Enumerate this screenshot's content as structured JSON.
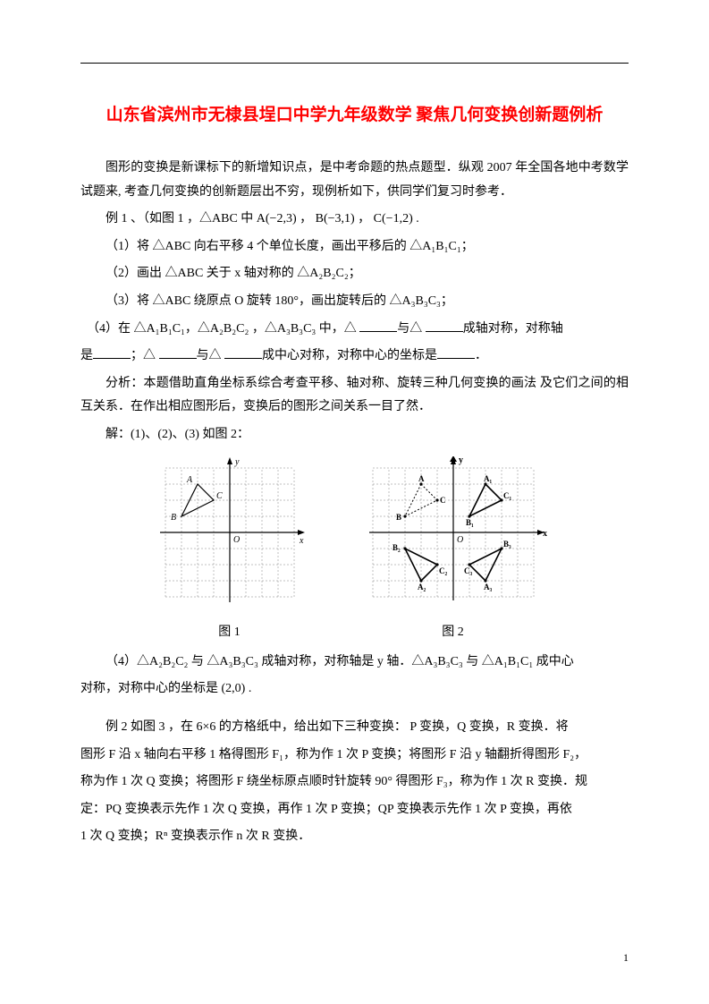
{
  "title": {
    "text": "山东省滨州市无棣县埕口中学九年级数学 聚焦几何变换创新题例析",
    "color": "#ff0000"
  },
  "intro": "图形的变换是新课标下的新增知识点，是中考命题的热点题型．纵观 2007 年全国各地中考数学试题来, 考查几何变换的创新题层出不穷，现例析如下，供同学们复习时参考．",
  "ex1": {
    "lead": "例 1 、（如图 1 ，",
    "tri": "△ABC 中 A(−2,3) ，  B(−3,1) ， C(−1,2) .",
    "q1": "（1）将 △ABC 向右平移 4 个单位长度，画出平移后的 △A₁B₁C₁；",
    "q2": "（2）画出 △ABC 关于 x 轴对称的 △A₂B₂C₂；",
    "q3": "（3）将 △ABC 绕原点 O 旋转 180°，画出旋转后的 △A₃B₃C₃；",
    "q4a": "（4）在 △A₁B₁C₁，△A₂B₂C₂ ，△A₃B₃C₃ 中，△ ",
    "q4b": "与△ ",
    "q4c": "成轴对称，对称轴",
    "q4d": "是",
    "q4e": "；△ ",
    "q4f": "与△ ",
    "q4g": "成中心对称，对称中心的坐标是",
    "q4h": "．"
  },
  "analysis": "分析：本题借助直角坐标系综合考查平移、轴对称、旋转三种几何变换的画法 及它们之间的相互关系．在作出相应图形后，变换后的图形之间关系一目了然．",
  "solution_line": "解：(1)、(2)、(3) 如图 2：",
  "captions": {
    "fig1": "图 1",
    "fig2": "图 2"
  },
  "ans4a": "（4）△A₂B₂C₂ 与 △A₃B₃C₃ 成轴对称，对称轴是 y 轴．△A₃B₃C₃ 与 △A₁B₁C₁ 成中心",
  "ans4b": "对称，对称中心的坐标是 (2,0) .",
  "ex2": {
    "p1": "例 2 如图 3 ，在 6×6 的方格纸中，给出如下三种变换： P 变换，Q 变换，R 变换．将",
    "p2": "图形 F 沿 x 轴向右平移 1 格得图形 F₁，称为作 1 次 P 变换；将图形 F 沿 y 轴翻折得图形 F₂，",
    "p3": "称为作 1 次 Q 变换；将图形 F 绕坐标原点顺时针旋转 90° 得图形 F₃，称为作 1 次 R 变换．规",
    "p4": "定：PQ 变换表示先作 1 次 Q 变换，再作 1 次 P 变换；QP 变换表示先作 1 次 P 变换，再依",
    "p5": "1 次 Q 变换；Rⁿ 变换表示作 n 次 R 变换．"
  },
  "pagenum": "1",
  "fig1": {
    "axis_color": "#000000",
    "grid_color": "#808080",
    "tri": {
      "A": [
        -2,
        3
      ],
      "B": [
        -3,
        1
      ],
      "C": [
        -1,
        2
      ]
    },
    "labels": {
      "A": "A",
      "B": "B",
      "C": "C",
      "O": "O",
      "x": "x",
      "y": "y"
    },
    "range": {
      "xmin": -4,
      "xmax": 4,
      "ymin": -4,
      "ymax": 4
    }
  },
  "fig2": {
    "axis_color": "#000000",
    "grid_color": "#808080",
    "range": {
      "xmin": -5,
      "xmax": 5,
      "ymin": -4,
      "ymax": 4
    },
    "orig": {
      "A": [
        -2,
        3
      ],
      "B": [
        -3,
        1
      ],
      "C": [
        -1,
        2
      ],
      "strokeDash": "2,2",
      "stroke": "#000",
      "fill": "none"
    },
    "t1": {
      "A": [
        2,
        3
      ],
      "B": [
        1,
        1
      ],
      "C": [
        3,
        2
      ],
      "stroke": "#000",
      "fill": "none",
      "bold": true
    },
    "t2": {
      "A": [
        -2,
        -3
      ],
      "B": [
        -3,
        -1
      ],
      "C": [
        -1,
        -2
      ],
      "stroke": "#000",
      "fill": "none",
      "bold": true
    },
    "t3": {
      "A": [
        2,
        -3
      ],
      "B": [
        3,
        -1
      ],
      "C": [
        1,
        -2
      ],
      "stroke": "#000",
      "fill": "none",
      "bold": true
    },
    "labels": {
      "O": "O",
      "x": "x",
      "y": "y",
      "A": "A",
      "B": "B",
      "C": "C",
      "A1": "A₁",
      "B1": "B₁",
      "C1": "C₁",
      "A2": "A₂",
      "B2": "B₂",
      "C2": "C₂",
      "A3": "A₃",
      "B3": "B₃",
      "C3": "C₃"
    }
  }
}
